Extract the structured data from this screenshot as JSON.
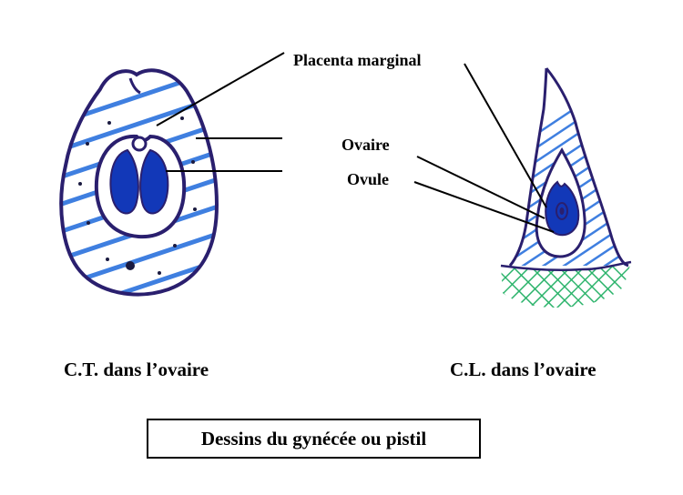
{
  "labels": {
    "placenta": "Placenta marginal",
    "ovaire": "Ovaire",
    "ovule": "Ovule"
  },
  "captions": {
    "left": "C.T. dans l’ovaire",
    "right": "C.L. dans l’ovaire"
  },
  "title": "Dessins du gynécée ou pistil",
  "colors": {
    "outline": "#2a1f6e",
    "hatch": "#3f7fe0",
    "ovule_fill": "#1238b8",
    "receptacle": "#2bb36a",
    "line": "#000000"
  }
}
